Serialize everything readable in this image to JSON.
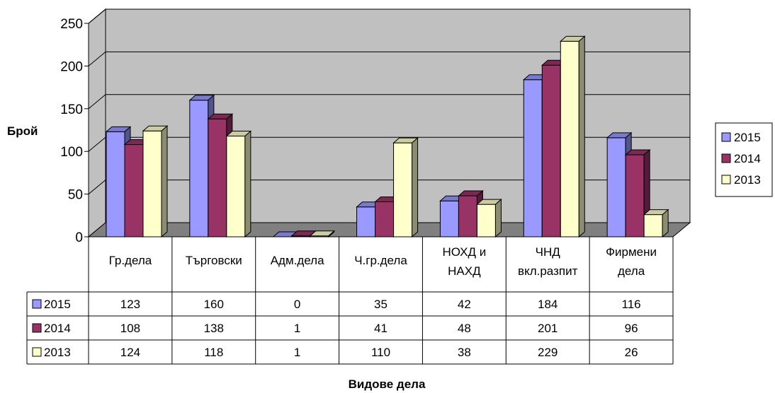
{
  "chart_data": {
    "type": "bar",
    "title": "",
    "ylabel": "Брой",
    "xlabel": "Видове дела",
    "ylim": [
      0,
      250
    ],
    "yticks": [
      0,
      50,
      100,
      150,
      200,
      250
    ],
    "grid": true,
    "legend_position": "right",
    "categories": [
      [
        "Гр.дела"
      ],
      [
        "Търговски"
      ],
      [
        "Адм.дела"
      ],
      [
        "Ч.гр.дела"
      ],
      [
        "НОХД и",
        "НАХД"
      ],
      [
        "ЧНД",
        "вкл.разпит"
      ],
      [
        "Фирмени",
        "дела"
      ]
    ],
    "series": [
      {
        "name": "2015",
        "color": "#9999ff",
        "values": [
          123,
          160,
          0,
          35,
          42,
          184,
          116
        ]
      },
      {
        "name": "2014",
        "color": "#993366",
        "values": [
          108,
          138,
          1,
          41,
          48,
          201,
          96
        ]
      },
      {
        "name": "2013",
        "color": "#ffffcc",
        "values": [
          124,
          118,
          1,
          110,
          38,
          229,
          26
        ]
      }
    ],
    "wall_color": "#c0c0c0",
    "floor_color": "#808080"
  }
}
